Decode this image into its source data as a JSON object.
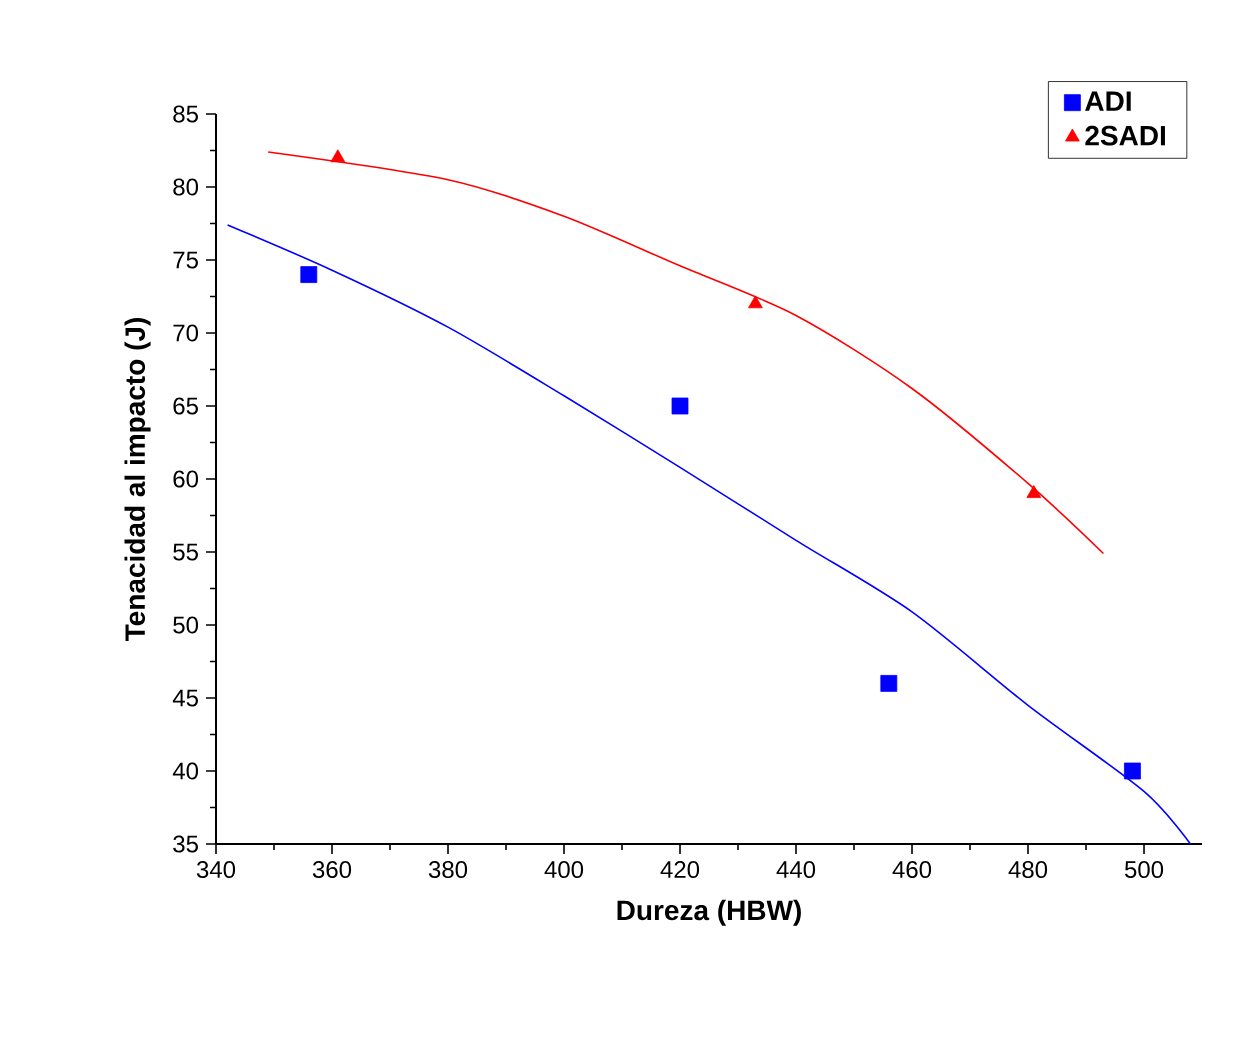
{
  "chart_data": {
    "type": "scatter",
    "xlabel": "Dureza (HBW)",
    "ylabel": "Tenacidad al impacto (J)",
    "xlim": [
      340,
      510
    ],
    "ylim": [
      35,
      85
    ],
    "xticks": [
      340,
      360,
      380,
      400,
      420,
      440,
      460,
      480,
      500
    ],
    "yticks": [
      35,
      40,
      45,
      50,
      55,
      60,
      65,
      70,
      75,
      80,
      85
    ],
    "grid": false,
    "legend": "top right",
    "series": [
      {
        "name": "ADI",
        "marker": "square",
        "color": "#0000ff",
        "x": [
          356,
          420,
          456,
          498
        ],
        "values": [
          74,
          65,
          46,
          40
        ]
      },
      {
        "name": "2SADI",
        "marker": "triangle",
        "color": "#ff0000",
        "x": [
          361,
          433,
          481
        ],
        "values": [
          82,
          72,
          59
        ]
      },
      {
        "type": "line",
        "marker": "none",
        "color": "#0000ff",
        "x": [
          342,
          360,
          380,
          400,
          420,
          440,
          460,
          480,
          500,
          508
        ],
        "values": [
          77.4,
          74.3,
          70.4,
          65.7,
          60.8,
          55.8,
          50.9,
          44.5,
          38.6,
          35
        ]
      },
      {
        "type": "line",
        "marker": "none",
        "color": "#ff0000",
        "x": [
          349,
          380,
          400,
          420,
          440,
          460,
          480,
          493
        ],
        "values": [
          82.4,
          80.5,
          78,
          74.6,
          71.2,
          66.2,
          59.7,
          54.9
        ]
      }
    ]
  }
}
